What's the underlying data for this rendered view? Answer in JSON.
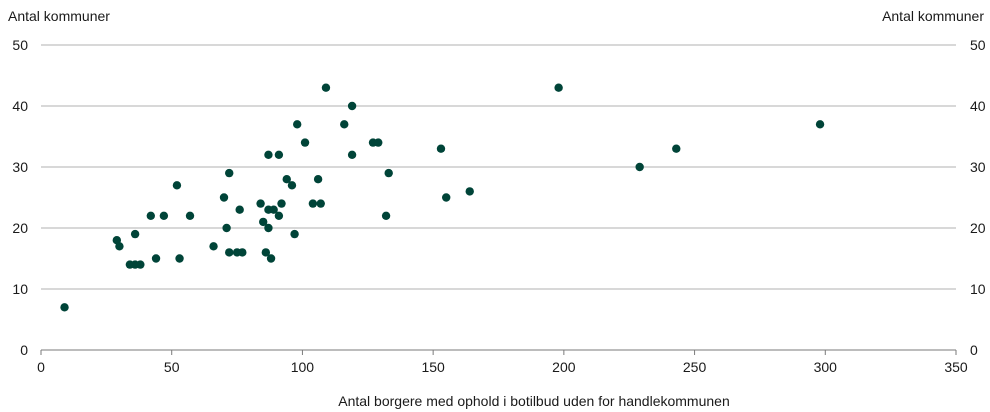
{
  "chart_data": {
    "type": "scatter",
    "title": "",
    "ylabel_left": "Antal kommuner",
    "ylabel_right": "Antal kommuner",
    "xlabel": "Antal borgere med ophold i botilbud uden for handlekommunen",
    "xlim": [
      0,
      350
    ],
    "ylim": [
      0,
      50
    ],
    "x_ticks": [
      0,
      50,
      100,
      150,
      200,
      250,
      300,
      350
    ],
    "y_ticks": [
      0,
      10,
      20,
      30,
      40,
      50
    ],
    "grid": "horizontal",
    "marker_color": "#004438",
    "points": [
      {
        "x": 9,
        "y": 7
      },
      {
        "x": 29,
        "y": 18
      },
      {
        "x": 30,
        "y": 17
      },
      {
        "x": 34,
        "y": 14
      },
      {
        "x": 36,
        "y": 19
      },
      {
        "x": 36,
        "y": 14
      },
      {
        "x": 38,
        "y": 14
      },
      {
        "x": 42,
        "y": 22
      },
      {
        "x": 44,
        "y": 15
      },
      {
        "x": 47,
        "y": 22
      },
      {
        "x": 52,
        "y": 27
      },
      {
        "x": 53,
        "y": 15
      },
      {
        "x": 57,
        "y": 22
      },
      {
        "x": 66,
        "y": 17
      },
      {
        "x": 70,
        "y": 25
      },
      {
        "x": 71,
        "y": 20
      },
      {
        "x": 72,
        "y": 29
      },
      {
        "x": 72,
        "y": 16
      },
      {
        "x": 75,
        "y": 16
      },
      {
        "x": 76,
        "y": 23
      },
      {
        "x": 77,
        "y": 16
      },
      {
        "x": 84,
        "y": 24
      },
      {
        "x": 85,
        "y": 21
      },
      {
        "x": 86,
        "y": 16
      },
      {
        "x": 87,
        "y": 32
      },
      {
        "x": 87,
        "y": 23
      },
      {
        "x": 87,
        "y": 20
      },
      {
        "x": 88,
        "y": 15
      },
      {
        "x": 89,
        "y": 23
      },
      {
        "x": 91,
        "y": 32
      },
      {
        "x": 91,
        "y": 22
      },
      {
        "x": 92,
        "y": 24
      },
      {
        "x": 94,
        "y": 28
      },
      {
        "x": 96,
        "y": 27
      },
      {
        "x": 97,
        "y": 19
      },
      {
        "x": 98,
        "y": 37
      },
      {
        "x": 101,
        "y": 34
      },
      {
        "x": 104,
        "y": 24
      },
      {
        "x": 106,
        "y": 28
      },
      {
        "x": 107,
        "y": 24
      },
      {
        "x": 109,
        "y": 43
      },
      {
        "x": 116,
        "y": 37
      },
      {
        "x": 119,
        "y": 40
      },
      {
        "x": 119,
        "y": 32
      },
      {
        "x": 127,
        "y": 34
      },
      {
        "x": 129,
        "y": 34
      },
      {
        "x": 132,
        "y": 22
      },
      {
        "x": 133,
        "y": 29
      },
      {
        "x": 153,
        "y": 33
      },
      {
        "x": 155,
        "y": 25
      },
      {
        "x": 164,
        "y": 26
      },
      {
        "x": 198,
        "y": 43
      },
      {
        "x": 229,
        "y": 30
      },
      {
        "x": 243,
        "y": 33
      },
      {
        "x": 298,
        "y": 37
      }
    ]
  }
}
